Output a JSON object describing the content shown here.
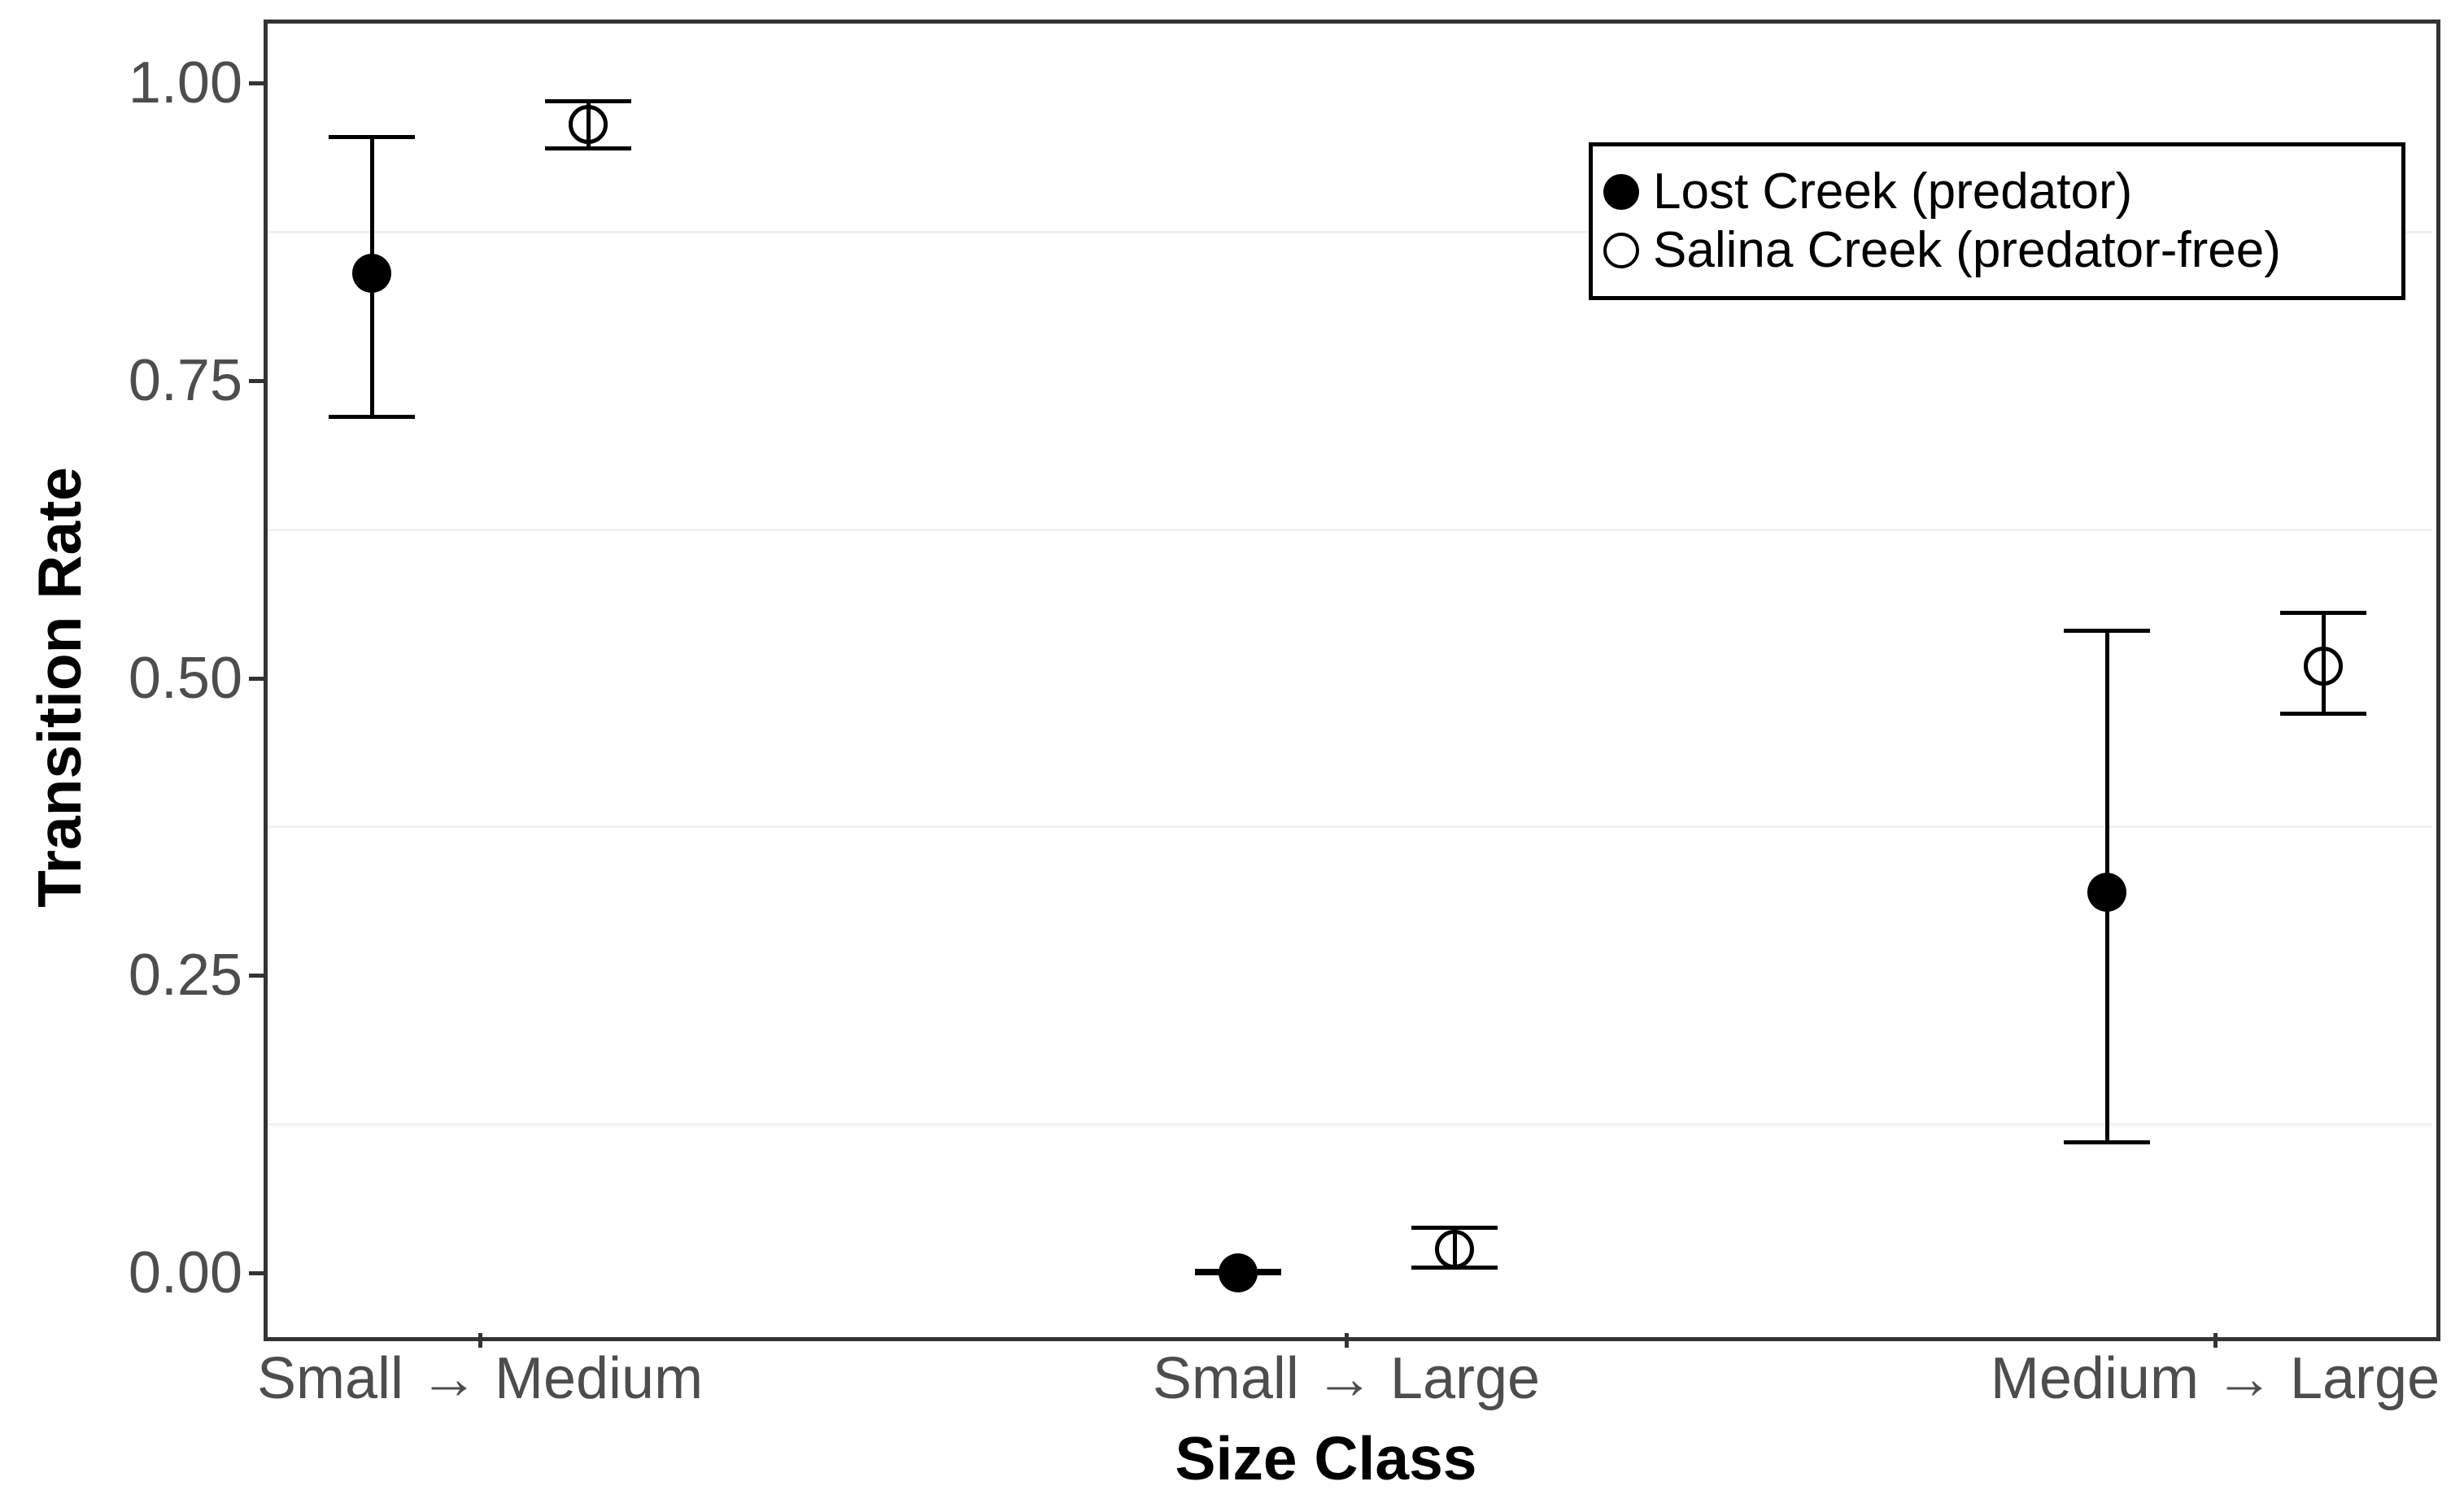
{
  "chart_data": {
    "type": "scatter",
    "subtype": "point-estimates-with-error-bars",
    "title": "",
    "xlabel": "Size Class",
    "ylabel": "Transition Rate",
    "categories": [
      "Small → Medium",
      "Small → Large",
      "Medium → Large"
    ],
    "y_ticks": [
      1.0,
      0.75,
      0.5,
      0.25,
      0.0
    ],
    "y_tick_labels": [
      "1.00",
      "0.75",
      "0.50",
      "0.25",
      "0.00"
    ],
    "ylim": [
      -0.05,
      1.05
    ],
    "grid": {
      "major_visible": false,
      "minor_y_values": [
        0.875,
        0.625,
        0.375,
        0.125
      ]
    },
    "legend": {
      "position": "top-right-inside",
      "entries": [
        {
          "label": "Lost Creek (predator)",
          "marker": "filled-circle"
        },
        {
          "label": "Salina Creek (predator-free)",
          "marker": "open-circle"
        }
      ]
    },
    "series": [
      {
        "name": "Lost Creek (predator)",
        "marker": "filled-circle",
        "dodge": -0.125,
        "points": [
          {
            "category": "Small → Medium",
            "estimate": 0.84,
            "ci_low": 0.72,
            "ci_high": 0.955
          },
          {
            "category": "Small → Large",
            "estimate": 0.0,
            "ci_low": 0.0,
            "ci_high": 0.002
          },
          {
            "category": "Medium → Large",
            "estimate": 0.32,
            "ci_low": 0.11,
            "ci_high": 0.54
          }
        ]
      },
      {
        "name": "Salina Creek (predator-free)",
        "marker": "open-circle",
        "dodge": 0.125,
        "points": [
          {
            "category": "Small → Medium",
            "estimate": 0.965,
            "ci_low": 0.945,
            "ci_high": 0.985
          },
          {
            "category": "Small → Large",
            "estimate": 0.02,
            "ci_low": 0.005,
            "ci_high": 0.038
          },
          {
            "category": "Medium → Large",
            "estimate": 0.51,
            "ci_low": 0.47,
            "ci_high": 0.555
          }
        ]
      }
    ],
    "colors": {
      "marker": "#000000",
      "axis_text": "#4d4d4d",
      "axis_title": "#000000",
      "panel_border": "#333333",
      "minor_grid": "#f0f0f0",
      "background": "#ffffff"
    }
  }
}
